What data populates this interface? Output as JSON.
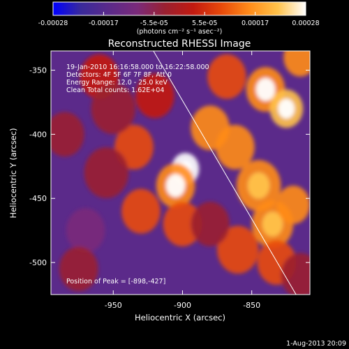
{
  "colors": {
    "background": "#000000",
    "text": "#ffffff",
    "colormap": [
      "#0000ff",
      "#3a2a9a",
      "#5b2a8a",
      "#7a2a7a",
      "#9a2030",
      "#c21a10",
      "#e84a0a",
      "#ff8c1a",
      "#ffc24a",
      "#ffffff"
    ]
  },
  "colorbar": {
    "tick_labels": [
      "-0.00028",
      "-0.00017",
      "-5.5e-05",
      "5.5e-05",
      "0.00017",
      "0.00028"
    ],
    "unit_label": "(photons cm⁻² s⁻¹ asec⁻²)"
  },
  "header": {
    "date_stamp": "1-Aug-2013 20:09"
  },
  "chart_data": {
    "type": "heatmap",
    "title": "Reconstructed RHESSI Image",
    "xlabel": "Heliocentric X (arcsec)",
    "ylabel": "Heliocentric Y (arcsec)",
    "xlim": [
      -995,
      -808
    ],
    "ylim": [
      -525,
      -335
    ],
    "x_ticks": [
      -950,
      -900,
      -850
    ],
    "y_ticks": [
      -500,
      -450,
      -400,
      -350
    ],
    "annotations": [
      "19-Jan-2010 16:16:58.000 to 16:22:58.000",
      "Detectors: 4F 5F 6F 7F 8F, Att 0",
      "Energy Range: 12.0 - 25.0 keV",
      "Clean     Total counts: 1.62E+04"
    ],
    "peak_label": "Position of Peak = [-898,-427]",
    "peak": [
      -898,
      -427
    ],
    "limb_line": [
      [
        -921,
        -335
      ],
      [
        -818,
        -525
      ]
    ],
    "value_range": [
      -0.00028,
      0.00028
    ],
    "sources": [
      [
        -898,
        -427,
        1.0,
        10
      ],
      [
        -905,
        -440,
        0.6,
        14
      ],
      [
        -840,
        -365,
        0.6,
        14
      ],
      [
        -825,
        -380,
        0.7,
        12
      ],
      [
        -815,
        -340,
        0.5,
        12
      ],
      [
        -868,
        -355,
        0.3,
        14
      ],
      [
        -880,
        -395,
        0.45,
        14
      ],
      [
        -862,
        -410,
        0.5,
        14
      ],
      [
        -845,
        -440,
        0.55,
        16
      ],
      [
        -835,
        -470,
        0.55,
        15
      ],
      [
        -820,
        -455,
        0.45,
        12
      ],
      [
        -832,
        -500,
        0.4,
        14
      ],
      [
        -860,
        -490,
        0.35,
        15
      ],
      [
        -900,
        -470,
        0.4,
        14
      ],
      [
        -930,
        -460,
        0.3,
        14
      ],
      [
        -935,
        -410,
        0.25,
        14
      ],
      [
        -920,
        -370,
        0.2,
        14
      ],
      [
        -960,
        -355,
        0.15,
        14
      ],
      [
        -950,
        -380,
        -0.2,
        16
      ],
      [
        -970,
        -475,
        -0.25,
        14
      ],
      [
        -975,
        -505,
        -0.2,
        14
      ],
      [
        -955,
        -430,
        -0.15,
        16
      ],
      [
        -985,
        -400,
        -0.2,
        14
      ],
      [
        -880,
        -470,
        -0.15,
        14
      ],
      [
        -815,
        -510,
        -0.1,
        14
      ]
    ]
  }
}
